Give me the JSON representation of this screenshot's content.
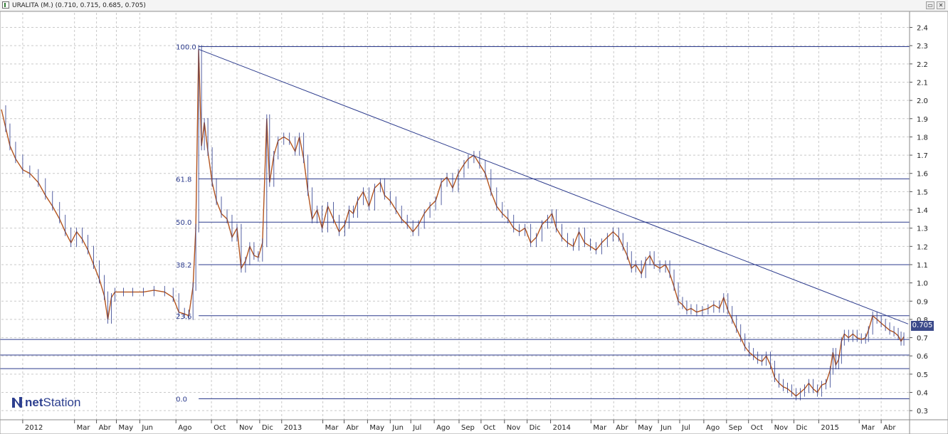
{
  "window": {
    "title": "URALITA (M.) (0.710, 0.715, 0.685, 0.705)",
    "restore_glyph": "▭",
    "close_glyph": "✕"
  },
  "logo": {
    "text_bold": "net",
    "text_rest": "Station"
  },
  "current_price": "0.705",
  "chart_data": {
    "type": "line",
    "title": "URALITA (M.) (0.710, 0.715, 0.685, 0.705)",
    "ohlc_last": {
      "open": 0.71,
      "high": 0.715,
      "low": 0.685,
      "close": 0.705
    },
    "ylim": [
      0.25,
      2.48
    ],
    "y_ticks": [
      0.3,
      0.4,
      0.5,
      0.6,
      0.7,
      0.8,
      0.9,
      1.0,
      1.1,
      1.2,
      1.3,
      1.4,
      1.5,
      1.6,
      1.7,
      1.8,
      1.9,
      2.0,
      2.1,
      2.2,
      2.3,
      2.4
    ],
    "y_tick_labels": [
      "0.3",
      "0.4",
      "0.5",
      "0.6",
      "0.7",
      "0.8",
      "0.9",
      "1.0",
      "1.1",
      "1.2",
      "1.3",
      "1.4",
      "1.5",
      "1.6",
      "1.7",
      "1.8",
      "1.9",
      "2.0",
      "2.1",
      "2.2",
      "2.3",
      "2.4"
    ],
    "x_range": [
      0,
      1280
    ],
    "x_ticks": [
      {
        "t": 30,
        "label": "2012"
      },
      {
        "t": 103,
        "label": "Mar"
      },
      {
        "t": 134,
        "label": "Abr"
      },
      {
        "t": 162,
        "label": "May"
      },
      {
        "t": 195,
        "label": "Jun"
      },
      {
        "t": 246,
        "label": "Ago"
      },
      {
        "t": 296,
        "label": "Oct"
      },
      {
        "t": 332,
        "label": "Nov"
      },
      {
        "t": 364,
        "label": "Dic"
      },
      {
        "t": 395,
        "label": "2013"
      },
      {
        "t": 453,
        "label": "Mar"
      },
      {
        "t": 483,
        "label": "Abr"
      },
      {
        "t": 516,
        "label": "May"
      },
      {
        "t": 548,
        "label": "Jun"
      },
      {
        "t": 577,
        "label": "Jul"
      },
      {
        "t": 610,
        "label": "Ago"
      },
      {
        "t": 645,
        "label": "Sep"
      },
      {
        "t": 676,
        "label": "Oct"
      },
      {
        "t": 709,
        "label": "Nov"
      },
      {
        "t": 741,
        "label": "Dic"
      },
      {
        "t": 774,
        "label": "2014"
      },
      {
        "t": 831,
        "label": "Mar"
      },
      {
        "t": 863,
        "label": "Abr"
      },
      {
        "t": 894,
        "label": "May"
      },
      {
        "t": 926,
        "label": "Jun"
      },
      {
        "t": 956,
        "label": "Jul"
      },
      {
        "t": 990,
        "label": "Ago"
      },
      {
        "t": 1022,
        "label": "Sep"
      },
      {
        "t": 1053,
        "label": "Oct"
      },
      {
        "t": 1086,
        "label": "Nov"
      },
      {
        "t": 1117,
        "label": "Dic"
      },
      {
        "t": 1152,
        "label": "2015"
      },
      {
        "t": 1209,
        "label": "Mar"
      },
      {
        "t": 1240,
        "label": "Abr"
      }
    ],
    "series": [
      {
        "color": "#b3541e",
        "points": [
          [
            0,
            1.95
          ],
          [
            6,
            1.85
          ],
          [
            12,
            1.75
          ],
          [
            20,
            1.68
          ],
          [
            30,
            1.62
          ],
          [
            40,
            1.6
          ],
          [
            52,
            1.55
          ],
          [
            62,
            1.48
          ],
          [
            72,
            1.42
          ],
          [
            82,
            1.35
          ],
          [
            90,
            1.28
          ],
          [
            98,
            1.22
          ],
          [
            106,
            1.28
          ],
          [
            114,
            1.24
          ],
          [
            122,
            1.18
          ],
          [
            130,
            1.1
          ],
          [
            138,
            1.02
          ],
          [
            145,
            0.93
          ],
          [
            150,
            0.8
          ],
          [
            155,
            0.92
          ],
          [
            160,
            0.95
          ],
          [
            172,
            0.95
          ],
          [
            185,
            0.95
          ],
          [
            200,
            0.95
          ],
          [
            215,
            0.96
          ],
          [
            230,
            0.95
          ],
          [
            242,
            0.92
          ],
          [
            250,
            0.84
          ],
          [
            258,
            0.83
          ],
          [
            264,
            0.82
          ],
          [
            270,
            0.98
          ],
          [
            274,
            1.3
          ],
          [
            278,
            2.28
          ],
          [
            282,
            1.75
          ],
          [
            286,
            1.88
          ],
          [
            291,
            1.72
          ],
          [
            297,
            1.55
          ],
          [
            303,
            1.45
          ],
          [
            310,
            1.38
          ],
          [
            318,
            1.35
          ],
          [
            325,
            1.25
          ],
          [
            332,
            1.3
          ],
          [
            338,
            1.08
          ],
          [
            344,
            1.12
          ],
          [
            350,
            1.2
          ],
          [
            356,
            1.15
          ],
          [
            362,
            1.14
          ],
          [
            368,
            1.22
          ],
          [
            374,
            1.9
          ],
          [
            378,
            1.55
          ],
          [
            384,
            1.7
          ],
          [
            390,
            1.78
          ],
          [
            398,
            1.8
          ],
          [
            406,
            1.78
          ],
          [
            414,
            1.72
          ],
          [
            420,
            1.8
          ],
          [
            426,
            1.68
          ],
          [
            432,
            1.5
          ],
          [
            438,
            1.35
          ],
          [
            445,
            1.4
          ],
          [
            452,
            1.3
          ],
          [
            460,
            1.42
          ],
          [
            468,
            1.35
          ],
          [
            476,
            1.28
          ],
          [
            484,
            1.32
          ],
          [
            490,
            1.4
          ],
          [
            496,
            1.38
          ],
          [
            502,
            1.45
          ],
          [
            510,
            1.5
          ],
          [
            518,
            1.42
          ],
          [
            526,
            1.52
          ],
          [
            534,
            1.55
          ],
          [
            540,
            1.48
          ],
          [
            548,
            1.45
          ],
          [
            556,
            1.4
          ],
          [
            564,
            1.35
          ],
          [
            572,
            1.32
          ],
          [
            580,
            1.28
          ],
          [
            588,
            1.32
          ],
          [
            596,
            1.38
          ],
          [
            604,
            1.42
          ],
          [
            612,
            1.45
          ],
          [
            620,
            1.55
          ],
          [
            628,
            1.58
          ],
          [
            636,
            1.52
          ],
          [
            644,
            1.6
          ],
          [
            652,
            1.65
          ],
          [
            658,
            1.68
          ],
          [
            666,
            1.7
          ],
          [
            674,
            1.65
          ],
          [
            682,
            1.6
          ],
          [
            690,
            1.5
          ],
          [
            698,
            1.42
          ],
          [
            706,
            1.38
          ],
          [
            714,
            1.35
          ],
          [
            722,
            1.3
          ],
          [
            730,
            1.28
          ],
          [
            738,
            1.3
          ],
          [
            746,
            1.22
          ],
          [
            754,
            1.25
          ],
          [
            762,
            1.32
          ],
          [
            770,
            1.35
          ],
          [
            776,
            1.38
          ],
          [
            782,
            1.3
          ],
          [
            790,
            1.25
          ],
          [
            798,
            1.22
          ],
          [
            806,
            1.2
          ],
          [
            814,
            1.28
          ],
          [
            822,
            1.22
          ],
          [
            830,
            1.2
          ],
          [
            838,
            1.18
          ],
          [
            846,
            1.22
          ],
          [
            854,
            1.25
          ],
          [
            862,
            1.28
          ],
          [
            870,
            1.25
          ],
          [
            876,
            1.2
          ],
          [
            882,
            1.15
          ],
          [
            888,
            1.08
          ],
          [
            894,
            1.1
          ],
          [
            902,
            1.05
          ],
          [
            908,
            1.12
          ],
          [
            914,
            1.15
          ],
          [
            920,
            1.1
          ],
          [
            928,
            1.08
          ],
          [
            936,
            1.1
          ],
          [
            942,
            1.05
          ],
          [
            948,
            0.98
          ],
          [
            954,
            0.9
          ],
          [
            960,
            0.88
          ],
          [
            966,
            0.85
          ],
          [
            972,
            0.86
          ],
          [
            980,
            0.84
          ],
          [
            988,
            0.85
          ],
          [
            996,
            0.86
          ],
          [
            1004,
            0.88
          ],
          [
            1012,
            0.86
          ],
          [
            1018,
            0.92
          ],
          [
            1024,
            0.85
          ],
          [
            1030,
            0.8
          ],
          [
            1036,
            0.75
          ],
          [
            1042,
            0.7
          ],
          [
            1048,
            0.65
          ],
          [
            1054,
            0.62
          ],
          [
            1060,
            0.6
          ],
          [
            1066,
            0.58
          ],
          [
            1072,
            0.57
          ],
          [
            1078,
            0.6
          ],
          [
            1084,
            0.55
          ],
          [
            1090,
            0.48
          ],
          [
            1096,
            0.45
          ],
          [
            1102,
            0.43
          ],
          [
            1108,
            0.42
          ],
          [
            1114,
            0.4
          ],
          [
            1120,
            0.38
          ],
          [
            1126,
            0.4
          ],
          [
            1132,
            0.42
          ],
          [
            1138,
            0.45
          ],
          [
            1144,
            0.42
          ],
          [
            1150,
            0.4
          ],
          [
            1156,
            0.44
          ],
          [
            1162,
            0.45
          ],
          [
            1168,
            0.52
          ],
          [
            1172,
            0.62
          ],
          [
            1176,
            0.55
          ],
          [
            1180,
            0.58
          ],
          [
            1184,
            0.68
          ],
          [
            1188,
            0.72
          ],
          [
            1194,
            0.7
          ],
          [
            1200,
            0.72
          ],
          [
            1206,
            0.7
          ],
          [
            1212,
            0.69
          ],
          [
            1218,
            0.7
          ],
          [
            1222,
            0.74
          ],
          [
            1228,
            0.82
          ],
          [
            1234,
            0.8
          ],
          [
            1240,
            0.78
          ],
          [
            1246,
            0.76
          ],
          [
            1252,
            0.74
          ],
          [
            1258,
            0.73
          ],
          [
            1264,
            0.71
          ],
          [
            1268,
            0.68
          ],
          [
            1272,
            0.705
          ]
        ]
      }
    ],
    "trendline": {
      "from": [
        278,
        2.28
      ],
      "to": [
        1278,
        0.775
      ]
    },
    "fibonacci": {
      "start": 278,
      "levels": [
        {
          "label": "100.0",
          "value": 2.295
        },
        {
          "label": "61.8",
          "value": 1.57
        },
        {
          "label": "50.0",
          "value": 1.333
        },
        {
          "label": "38.2",
          "value": 1.1
        },
        {
          "label": "23.6",
          "value": 0.82
        },
        {
          "label": "0.0",
          "value": 0.365
        }
      ]
    },
    "horizontal_lines": [
      0.69,
      0.605,
      0.53
    ],
    "grid": true,
    "legend": "none",
    "colors": {
      "price": "#b3541e",
      "lines": "#2b3a8c",
      "grid": "#c9c9c9",
      "price_tag": "#3b4a8a"
    }
  }
}
